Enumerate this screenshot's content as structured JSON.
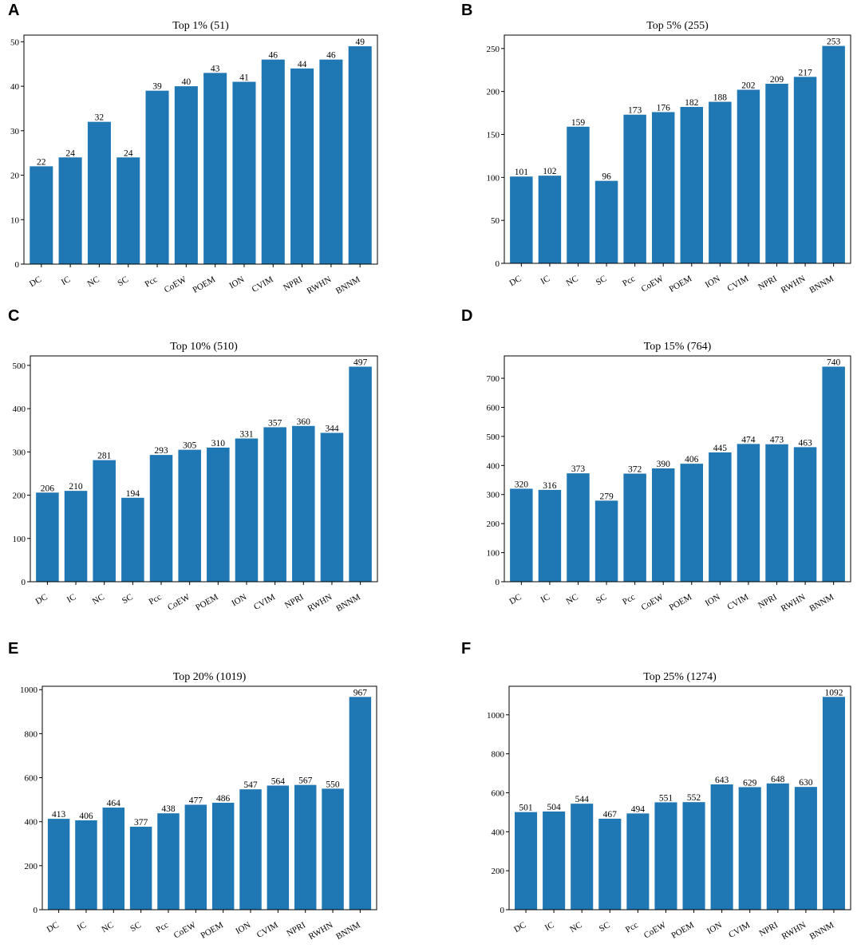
{
  "chart_data": [
    {
      "panel": "A",
      "type": "bar",
      "title": "Top 1% (51)",
      "categories": [
        "DC",
        "IC",
        "NC",
        "SC",
        "Pcc",
        "CoEW",
        "POEM",
        "ION",
        "CVIM",
        "NPRI",
        "RWHN",
        "BNNM"
      ],
      "values": [
        22,
        24,
        32,
        24,
        39,
        40,
        43,
        41,
        46,
        44,
        46,
        49
      ],
      "yticks": [
        0,
        10,
        20,
        30,
        40,
        50
      ],
      "ylim": [
        0,
        51.5
      ],
      "xlabel": "",
      "ylabel": "",
      "grid": false
    },
    {
      "panel": "B",
      "type": "bar",
      "title": "Top 5% (255)",
      "categories": [
        "DC",
        "IC",
        "NC",
        "SC",
        "Pcc",
        "CoEW",
        "POEM",
        "ION",
        "CVIM",
        "NPRI",
        "RWHN",
        "BNNM"
      ],
      "values": [
        101,
        102,
        159,
        96,
        173,
        176,
        182,
        188,
        202,
        209,
        217,
        253
      ],
      "yticks": [
        0,
        50,
        100,
        150,
        200,
        250
      ],
      "ylim": [
        0,
        265.6
      ],
      "xlabel": "",
      "ylabel": "",
      "grid": false
    },
    {
      "panel": "C",
      "type": "bar",
      "title": "Top 10% (510)",
      "categories": [
        "DC",
        "IC",
        "NC",
        "SC",
        "Pcc",
        "CoEW",
        "POEM",
        "ION",
        "CVIM",
        "NPRI",
        "RWHN",
        "BNNM"
      ],
      "values": [
        206,
        210,
        281,
        194,
        293,
        305,
        310,
        331,
        357,
        360,
        344,
        497
      ],
      "yticks": [
        0,
        100,
        200,
        300,
        400,
        500
      ],
      "ylim": [
        0,
        521.9
      ],
      "xlabel": "",
      "ylabel": "",
      "grid": false
    },
    {
      "panel": "D",
      "type": "bar",
      "title": "Top 15% (764)",
      "categories": [
        "DC",
        "IC",
        "NC",
        "SC",
        "Pcc",
        "CoEW",
        "POEM",
        "ION",
        "CVIM",
        "NPRI",
        "RWHN",
        "BNNM"
      ],
      "values": [
        320,
        316,
        373,
        279,
        372,
        390,
        406,
        445,
        474,
        473,
        463,
        740
      ],
      "yticks": [
        0,
        100,
        200,
        300,
        400,
        500,
        600,
        700
      ],
      "ylim": [
        0,
        777
      ],
      "xlabel": "",
      "ylabel": "",
      "grid": false
    },
    {
      "panel": "E",
      "type": "bar",
      "title": "Top 20% (1019)",
      "categories": [
        "DC",
        "IC",
        "NC",
        "SC",
        "Pcc",
        "CoEW",
        "POEM",
        "ION",
        "CVIM",
        "NPRI",
        "RWHN",
        "BNNM"
      ],
      "values": [
        413,
        406,
        464,
        377,
        438,
        477,
        486,
        547,
        564,
        567,
        550,
        967
      ],
      "yticks": [
        0,
        200,
        400,
        600,
        800,
        1000
      ],
      "ylim": [
        0,
        1015.4
      ],
      "xlabel": "",
      "ylabel": "",
      "grid": false
    },
    {
      "panel": "F",
      "type": "bar",
      "title": "Top 25% (1274)",
      "categories": [
        "DC",
        "IC",
        "NC",
        "SC",
        "Pcc",
        "CoEW",
        "POEM",
        "ION",
        "CVIM",
        "NPRI",
        "RWHN",
        "BNNM"
      ],
      "values": [
        501,
        504,
        544,
        467,
        494,
        551,
        552,
        643,
        629,
        648,
        630,
        1092
      ],
      "yticks": [
        0,
        200,
        400,
        600,
        800,
        1000
      ],
      "ylim": [
        0,
        1146.6
      ],
      "xlabel": "",
      "ylabel": "",
      "grid": false
    }
  ],
  "colors": {
    "bar": "#1f77b4",
    "axis": "#000000",
    "text": "#000000"
  }
}
